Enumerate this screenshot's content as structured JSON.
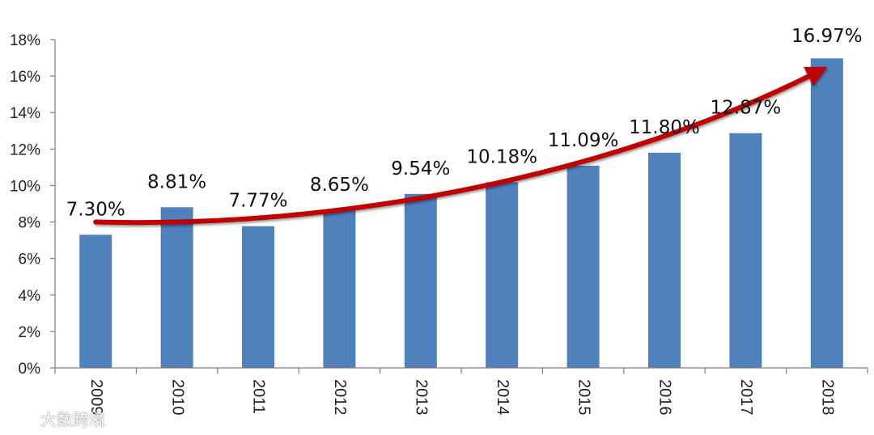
{
  "chart_data": {
    "type": "bar",
    "title": "",
    "xlabel": "",
    "ylabel": "",
    "categories": [
      "2009",
      "2010",
      "2011",
      "2012",
      "2013",
      "2014",
      "2015",
      "2016",
      "2017",
      "2018"
    ],
    "values": [
      7.3,
      8.81,
      7.77,
      8.65,
      9.54,
      10.18,
      11.09,
      11.8,
      12.87,
      16.97
    ],
    "data_labels": [
      "7.30%",
      "8.81%",
      "7.77%",
      "8.65%",
      "9.54%",
      "10.18%",
      "11.09%",
      "11.80%",
      "12.87%",
      "16.97%"
    ],
    "ylim": [
      0,
      18
    ],
    "yticks": [
      0,
      2,
      4,
      6,
      8,
      10,
      12,
      14,
      16,
      18
    ],
    "ytick_labels": [
      "0%",
      "2%",
      "4%",
      "6%",
      "8%",
      "10%",
      "12%",
      "14%",
      "16%",
      "18%"
    ],
    "grid": false,
    "legend": "none",
    "bar_color": "#4f81bd",
    "trend_arrow": {
      "color": "#c00000",
      "start_value": 8.0,
      "end_value": 16.4,
      "description": "upward trend arrow"
    }
  },
  "watermark": {
    "text": "大数跨境",
    "icon": "logo-icon"
  }
}
